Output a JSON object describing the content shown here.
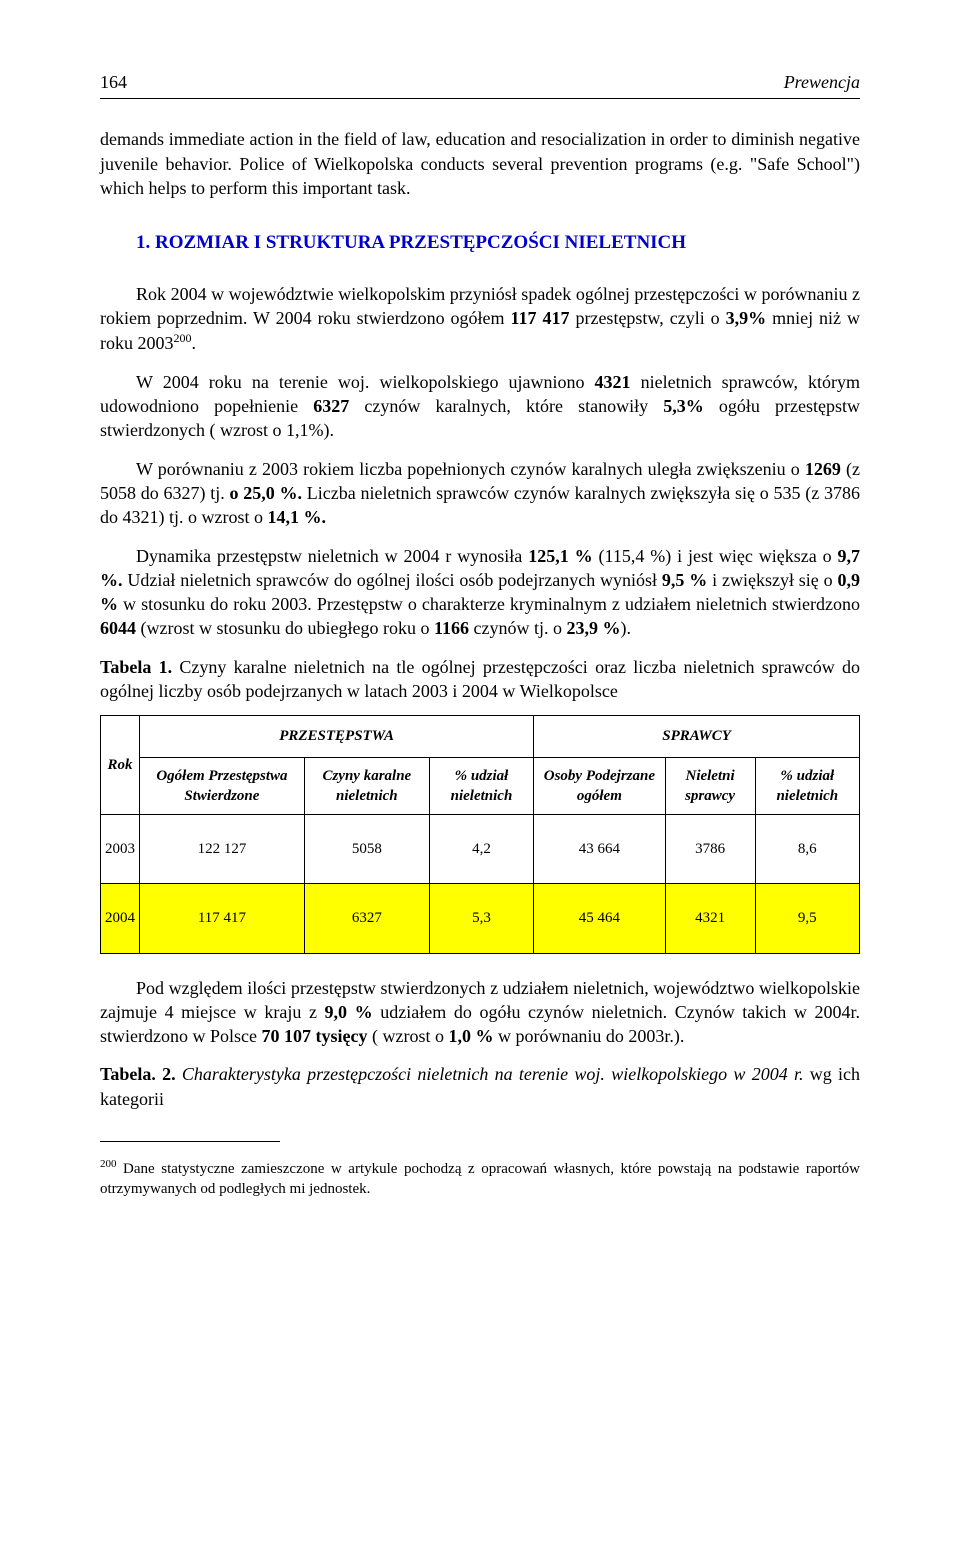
{
  "page": {
    "number": "164",
    "running_title": "Prewencja"
  },
  "intro_paragraph": "demands immediate action in the field of law, education and resocialization in order to diminish negative juvenile behavior. Police of Wielkopolska conducts several prevention programs (e.g. \"Safe School\") which helps to perform this important task.",
  "section_heading": "1. ROZMIAR I STRUKTURA PRZESTĘPCZOŚCI NIELETNICH",
  "p1": {
    "pre": "Rok 2004 w województwie wielkopolskim przyniósł spadek ogólnej przestępczości w porównaniu z rokiem poprzednim. W 2004 roku stwierdzono ogółem ",
    "b1": "117 417",
    "mid1": " przestępstw, czyli o ",
    "b2": "3,9%",
    "mid2": " mniej niż w roku 2003",
    "sup": "200",
    "post": "."
  },
  "p2": {
    "pre": "W 2004 roku na terenie woj. wielkopolskiego ujawniono ",
    "b1": "4321",
    "mid1": " nieletnich sprawców, którym udowodniono popełnienie ",
    "b2": "6327",
    "mid2": " czynów karalnych, które stanowiły ",
    "b3": "5,3%",
    "post": " ogółu przestępstw stwierdzonych ( wzrost o 1,1%)."
  },
  "p3": {
    "pre": "W porównaniu z 2003 rokiem liczba popełnionych czynów karalnych uległa zwiększeniu o ",
    "b1": "1269",
    "mid1": " (z 5058 do 6327) tj. ",
    "b2": "o 25,0 %. ",
    "mid2": "Liczba nieletnich sprawców czynów karalnych zwiększyła się o 535 (z 3786 do 4321) tj. o wzrost o ",
    "b3": "14,1 %."
  },
  "p4": {
    "pre": "Dynamika przestępstw nieletnich w 2004 r wynosiła ",
    "b1": "125,1 %",
    "mid1": " (115,4 %) i jest więc większa o ",
    "b2": "9,7 %. ",
    "mid2": "Udział nieletnich sprawców do ogólnej ilości osób podejrzanych wyniósł ",
    "b3": "9,5 %",
    "mid3": " i zwiększył się o ",
    "b4": "0,9 %",
    "mid4": " w stosunku do roku 2003. Przestępstw o charakterze kryminalnym z udziałem nieletnich stwierdzono ",
    "b5": "6044",
    "mid5": " (wzrost w stosunku do ubiegłego roku o ",
    "b6": "1166",
    "mid6": " czynów tj. o ",
    "b7": "23,9 %",
    "post": ")."
  },
  "table1_caption": {
    "b": "Tabela 1.",
    "text": " Czyny karalne nieletnich na tle ogólnej przestępczości oraz liczba  nieletnich sprawców do ogólnej liczby osób podejrzanych w latach 2003 i 2004 w Wielkopolsce"
  },
  "table1": {
    "group_headers": [
      "PRZESTĘPSTWA",
      "SPRAWCY"
    ],
    "col_rok": "Rok",
    "columns": [
      "Ogółem Przestępstwa Stwierdzone",
      "Czyny karalne nieletnich",
      "% udział nieletnich",
      "Osoby Podejrzane ogółem",
      "Nieletni sprawcy",
      "% udział nieletnich"
    ],
    "rows": [
      {
        "year": "2003",
        "cells": [
          "122 127",
          "5058",
          "4,2",
          "43 664",
          "3786",
          "8,6"
        ],
        "highlight": false
      },
      {
        "year": "2004",
        "cells": [
          "117 417",
          "6327",
          "5,3",
          "45 464",
          "4321",
          "9,5"
        ],
        "highlight": true
      }
    ],
    "highlight_color": "#ffff00"
  },
  "p5": {
    "pre": "Pod względem ilości przestępstw stwierdzonych z udziałem nieletnich, województwo wielkopolskie zajmuje 4 miejsce w kraju z ",
    "b1": "9,0 %",
    "mid1": " udziałem do ogółu czynów nieletnich. Czynów takich w 2004r. stwierdzono w Polsce ",
    "b2": "70 107 tysięcy",
    "mid2": " ( wzrost o ",
    "b3": "1,0 % ",
    "post": " w porównaniu do 2003r.)."
  },
  "table2_caption": {
    "b": "Tabela. 2.",
    "i": " Charakterystyka przestępczości nieletnich na terenie woj. wielkopolskiego w 2004 r.",
    "tail": " wg ich kategorii"
  },
  "footnote": {
    "num": "200",
    "text": " Dane statystyczne zamieszczone w artykule pochodzą z opracowań własnych, które powstają na podstawie raportów otrzymywanych od podległych mi jednostek."
  }
}
